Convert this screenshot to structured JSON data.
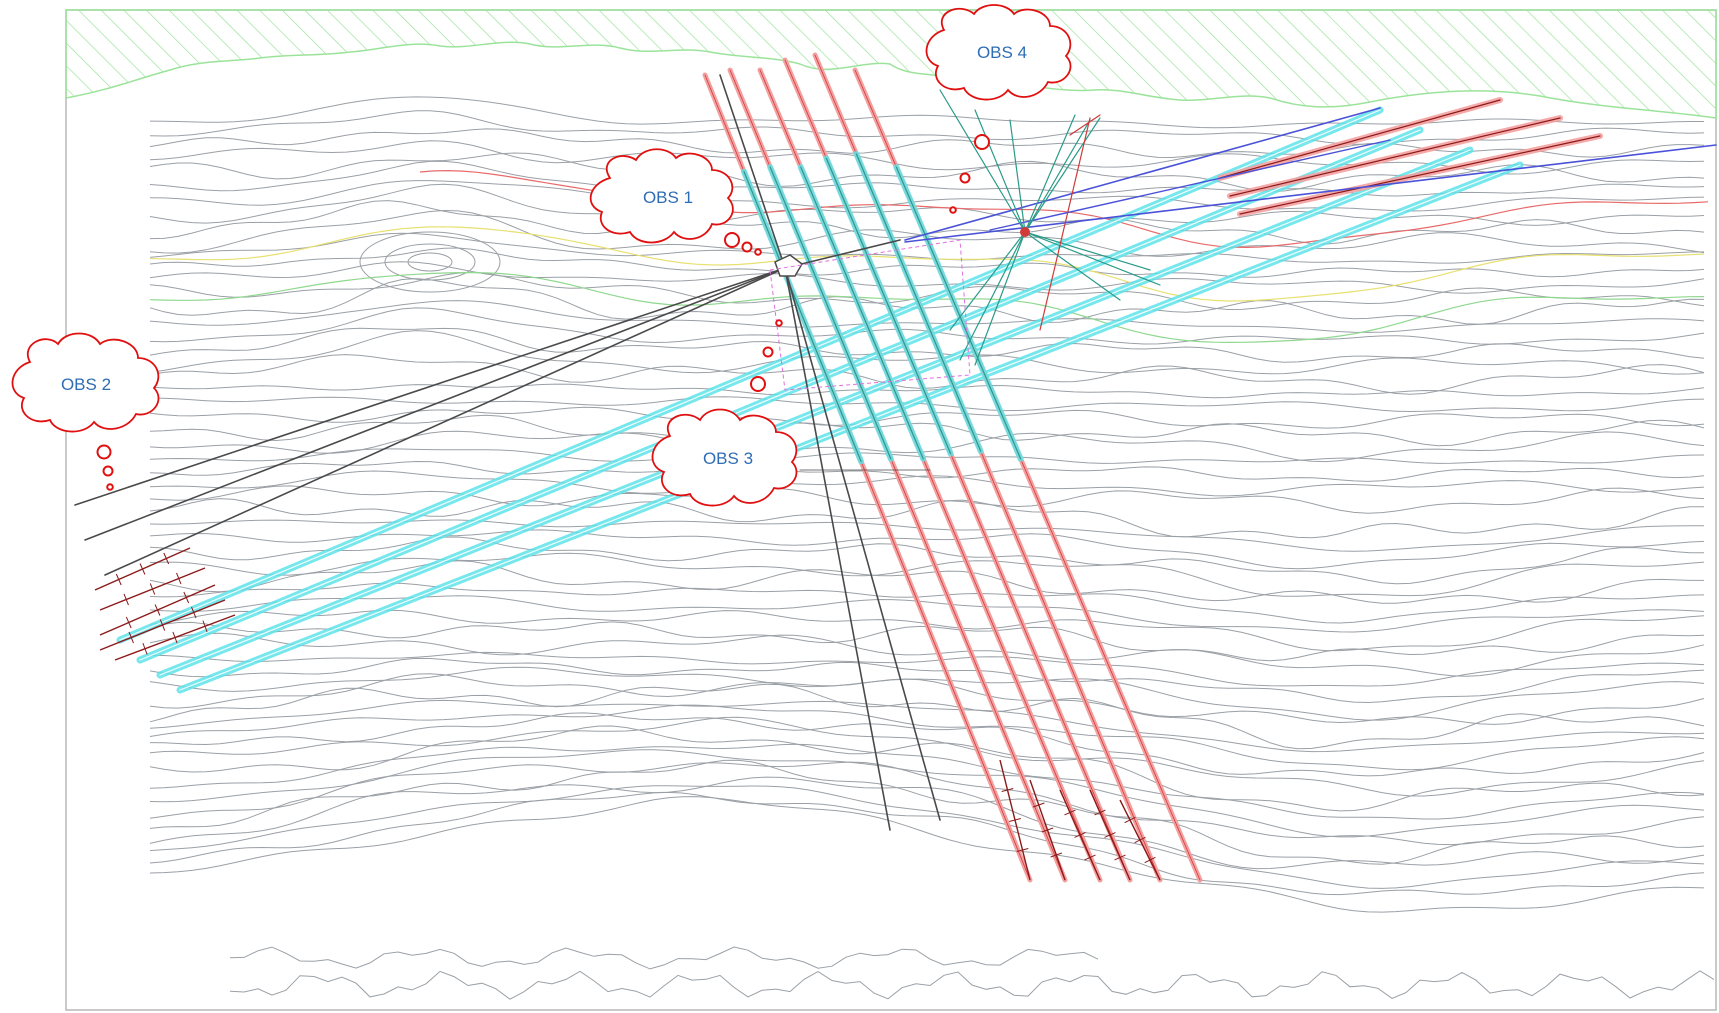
{
  "callouts": [
    {
      "id": "obs1",
      "label": "OBS 1"
    },
    {
      "id": "obs2",
      "label": "OBS 2"
    },
    {
      "id": "obs3",
      "label": "OBS 3"
    },
    {
      "id": "obs4",
      "label": "OBS 4"
    }
  ],
  "colors": {
    "contour": "#9aa0a6",
    "contour_red": "#e86a6a",
    "contour_yellow": "#e8e070",
    "contour_green": "#8fd88f",
    "hatch": "#9be39b",
    "tunnel_cyan": "#5ee3ea",
    "tunnel_pink": "#f4a0a0",
    "tunnel_red": "#d03a3a",
    "alignment_dark": "#4a4a4a",
    "alignment_blue": "#4a52d8",
    "alignment_teal": "#2a9a88",
    "chainage_maroon": "#8b1a1a",
    "callout_outline": "#e01010",
    "callout_text": "#2e6db4",
    "frame": "#b8b8b8"
  }
}
